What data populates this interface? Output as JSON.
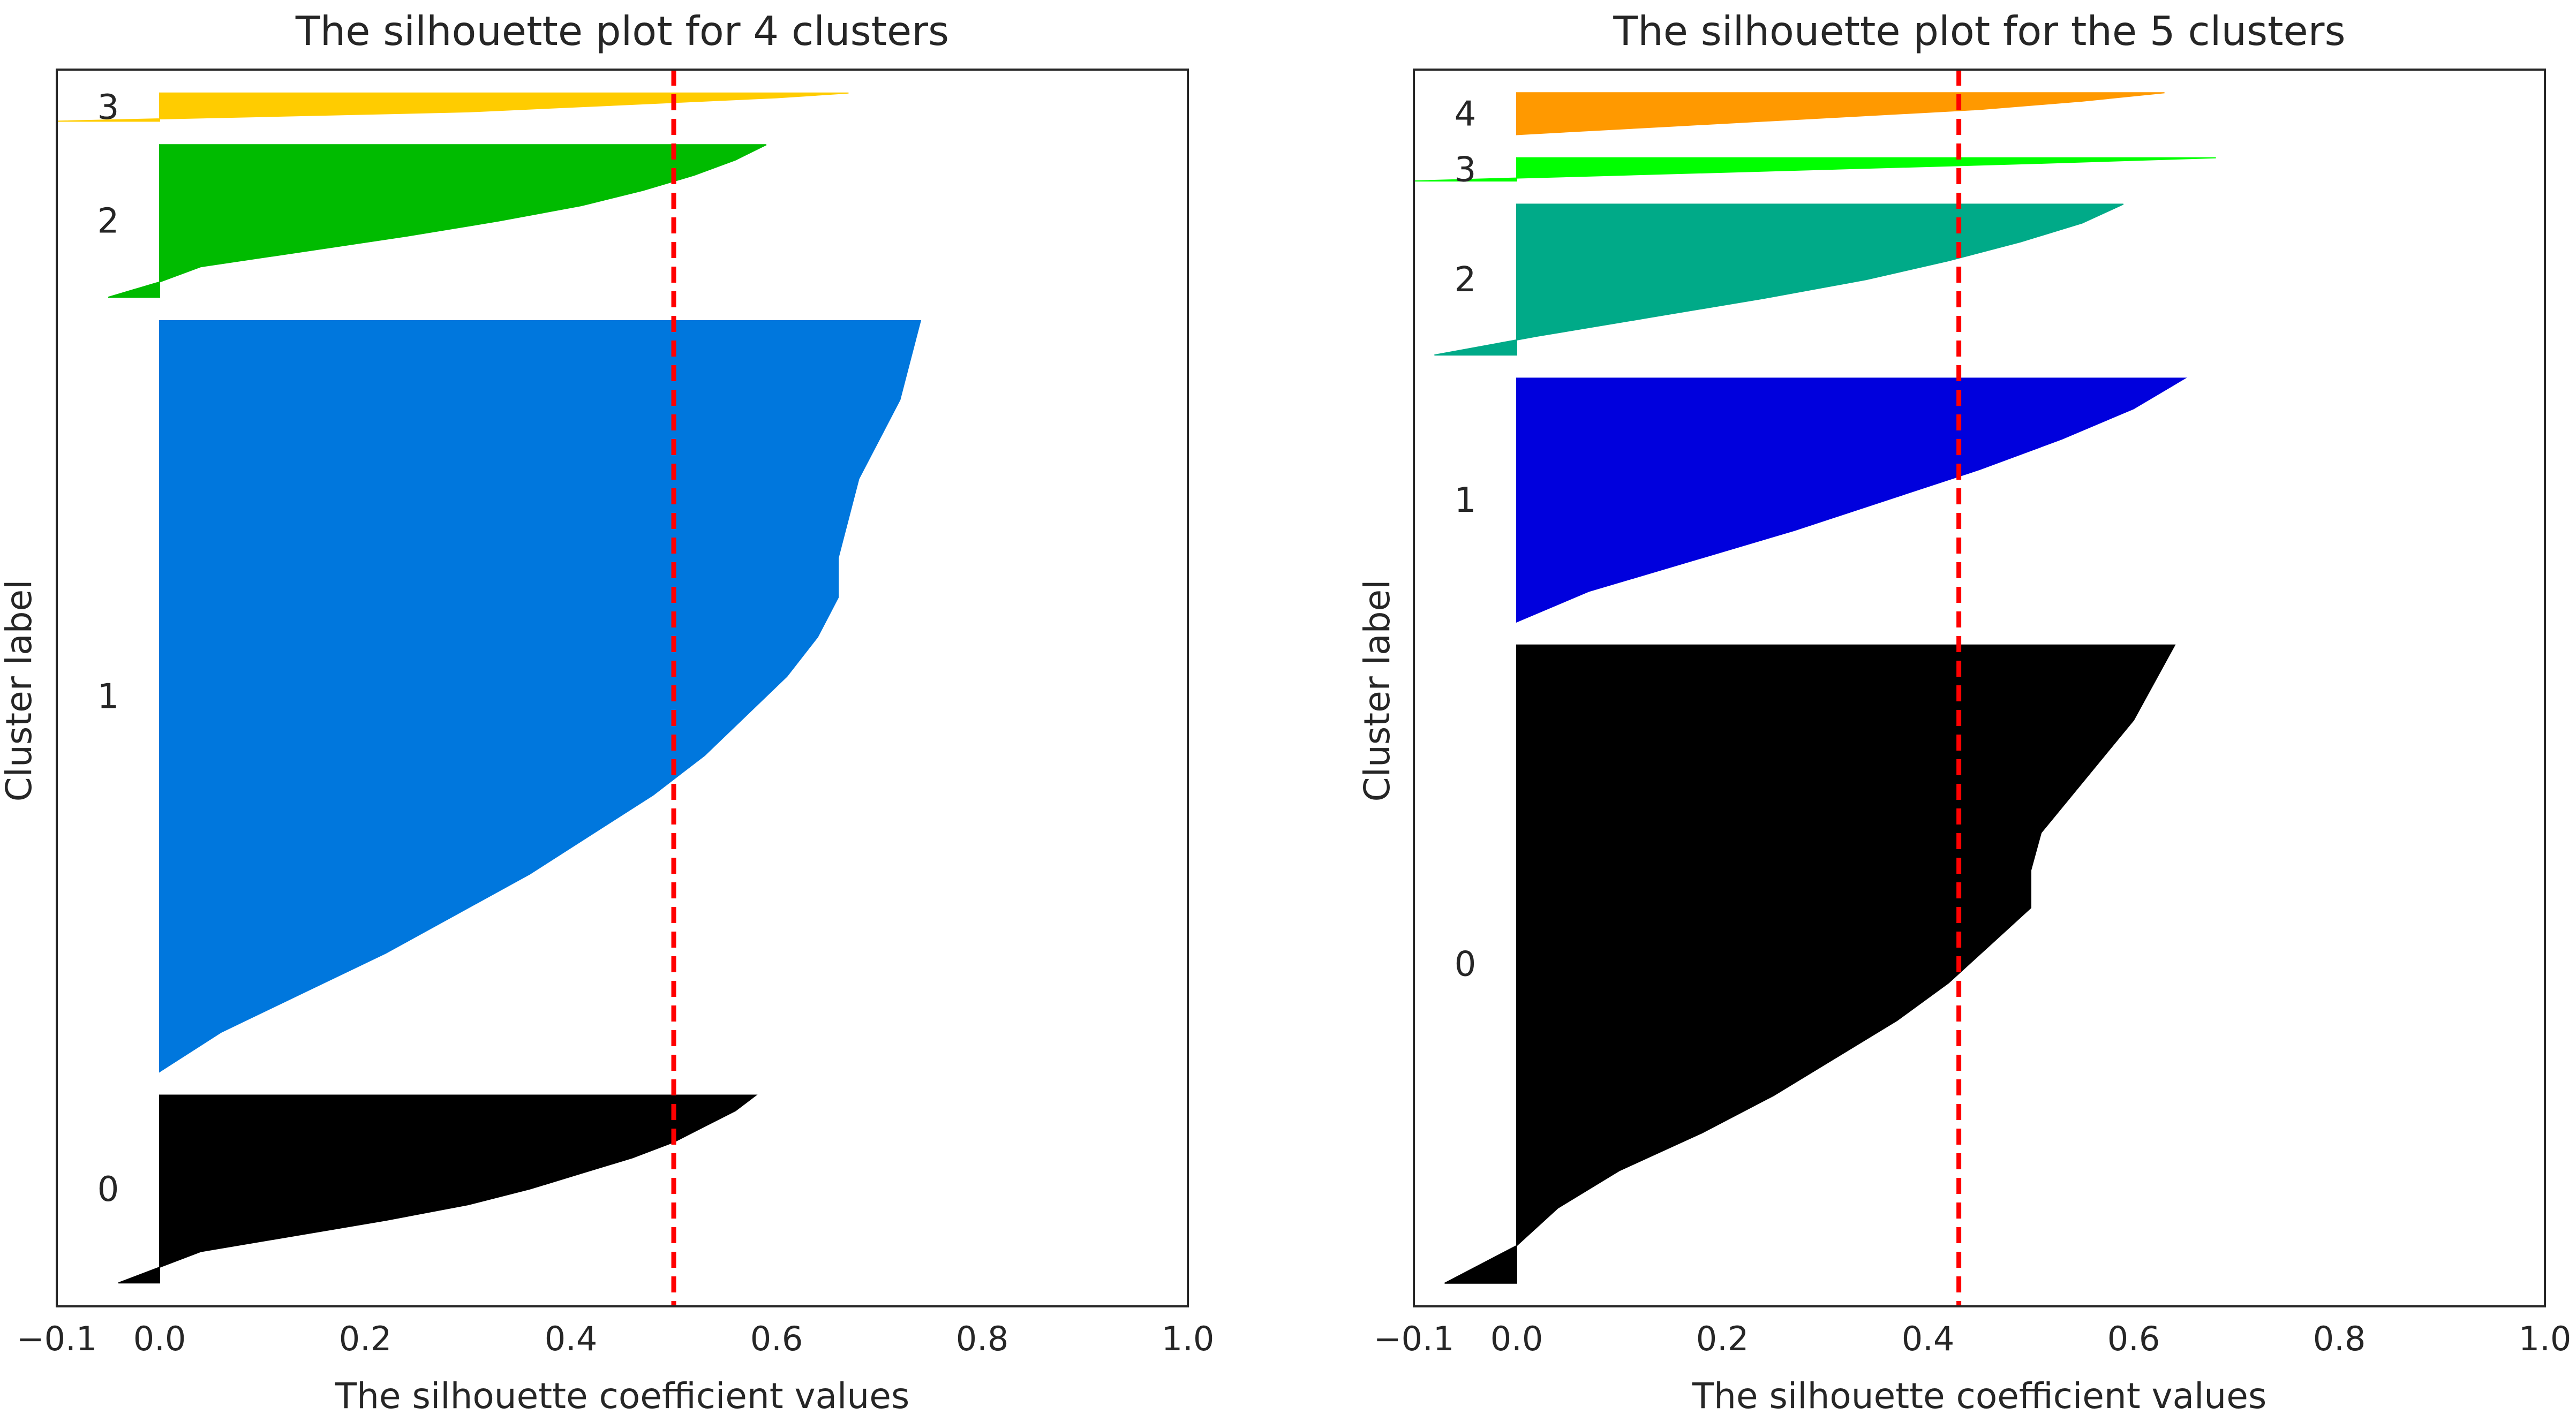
{
  "chart_data": [
    {
      "type": "area",
      "subtype": "silhouette",
      "title": "The silhouette plot for 4 clusters",
      "xlabel": "The silhouette coefficient values",
      "ylabel": "Cluster label",
      "xlim": [
        -0.1,
        1.0
      ],
      "xticks": [
        -0.1,
        0.0,
        0.2,
        0.4,
        0.6,
        0.8,
        1.0
      ],
      "xtick_labels": [
        "−0.1",
        "0.0",
        "0.2",
        "0.4",
        "0.6",
        "0.8",
        "1.0"
      ],
      "grid": false,
      "average_silhouette": 0.5,
      "clusters": [
        {
          "label": "0",
          "color": "#000000",
          "size": 80,
          "max": 0.58,
          "min": -0.04,
          "profile": [
            0.58,
            0.56,
            0.53,
            0.5,
            0.46,
            0.41,
            0.36,
            0.3,
            0.22,
            0.13,
            0.04,
            0.0,
            -0.04
          ]
        },
        {
          "label": "1",
          "color": "#0077DD",
          "size": 320,
          "max": 0.74,
          "min": 0.0,
          "profile": [
            0.74,
            0.73,
            0.72,
            0.7,
            0.68,
            0.67,
            0.66,
            0.66,
            0.64,
            0.61,
            0.57,
            0.53,
            0.48,
            0.42,
            0.36,
            0.29,
            0.22,
            0.14,
            0.06,
            0.0
          ]
        },
        {
          "label": "2",
          "color": "#00BB00",
          "size": 65,
          "max": 0.59,
          "min": -0.05,
          "profile": [
            0.59,
            0.56,
            0.52,
            0.47,
            0.41,
            0.33,
            0.24,
            0.14,
            0.04,
            0.0,
            -0.05
          ]
        },
        {
          "label": "3",
          "color": "#FFCC00",
          "size": 12,
          "max": 0.67,
          "min": -0.1,
          "profile": [
            0.67,
            0.6,
            0.5,
            0.4,
            0.3,
            0.1,
            -0.1
          ]
        }
      ]
    },
    {
      "type": "area",
      "subtype": "silhouette",
      "title": "The silhouette plot for the 5 clusters",
      "xlabel": "The silhouette coefficient values",
      "ylabel": "Cluster label",
      "xlim": [
        -0.1,
        1.0
      ],
      "xticks": [
        -0.1,
        0.0,
        0.2,
        0.4,
        0.6,
        0.8,
        1.0
      ],
      "xtick_labels": [
        "−0.1",
        "0.0",
        "0.2",
        "0.4",
        "0.6",
        "0.8",
        "1.0"
      ],
      "grid": false,
      "average_silhouette": 0.43,
      "clusters": [
        {
          "label": "0",
          "color": "#000000",
          "size": 275,
          "max": 0.64,
          "min": -0.07,
          "profile": [
            0.64,
            0.62,
            0.6,
            0.57,
            0.54,
            0.51,
            0.5,
            0.5,
            0.46,
            0.42,
            0.37,
            0.31,
            0.25,
            0.18,
            0.1,
            0.04,
            0.0,
            -0.07
          ]
        },
        {
          "label": "1",
          "color": "#0000DD",
          "size": 105,
          "max": 0.65,
          "min": 0.0,
          "profile": [
            0.65,
            0.6,
            0.53,
            0.45,
            0.36,
            0.27,
            0.17,
            0.07,
            0.0
          ]
        },
        {
          "label": "2",
          "color": "#00AA88",
          "size": 65,
          "max": 0.59,
          "min": -0.08,
          "profile": [
            0.59,
            0.55,
            0.49,
            0.42,
            0.34,
            0.24,
            0.13,
            0.02,
            -0.08
          ]
        },
        {
          "label": "3",
          "color": "#00FF00",
          "size": 10,
          "max": 0.68,
          "min": -0.1,
          "profile": [
            0.68,
            0.5,
            0.3,
            0.1,
            -0.1
          ]
        },
        {
          "label": "4",
          "color": "#FF9900",
          "size": 18,
          "max": 0.63,
          "min": 0.0,
          "profile": [
            0.63,
            0.55,
            0.45,
            0.3,
            0.15,
            0.0
          ]
        }
      ]
    }
  ]
}
